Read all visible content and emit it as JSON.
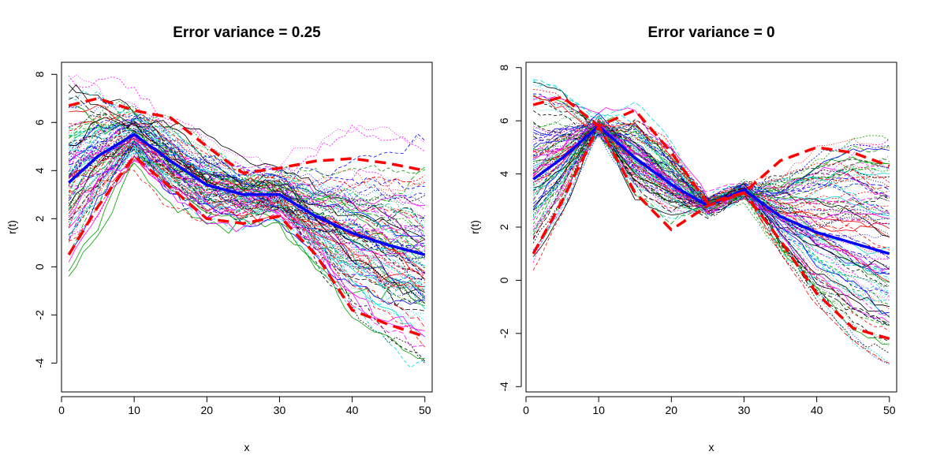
{
  "chart_data": [
    {
      "type": "line",
      "title": "Error variance = 0.25",
      "xlabel": "x",
      "ylabel": "r(t)",
      "xlim": [
        0,
        51
      ],
      "ylim": [
        -5.2,
        8.5
      ],
      "xticks": [
        0,
        10,
        20,
        30,
        40,
        50
      ],
      "yticks": [
        -4,
        -2,
        0,
        2,
        4,
        6,
        8
      ],
      "n_sample_curves": 100,
      "sample_curve_colors": [
        "#000000",
        "#ff0000",
        "#00a000",
        "#0000ff",
        "#00d8d8",
        "#ff00ff"
      ],
      "series": [
        {
          "role": "mean",
          "color": "#0000ff",
          "x": [
            1,
            5,
            10,
            15,
            20,
            25,
            30,
            35,
            40,
            45,
            50
          ],
          "values": [
            3.5,
            4.6,
            5.5,
            4.4,
            3.4,
            3.0,
            3.0,
            2.1,
            1.4,
            0.9,
            0.5
          ]
        },
        {
          "role": "upper-band",
          "color": "#ff0000",
          "x": [
            1,
            5,
            10,
            15,
            20,
            25,
            30,
            35,
            40,
            45,
            50
          ],
          "values": [
            6.7,
            7.0,
            6.5,
            6.2,
            5.0,
            3.9,
            4.1,
            4.4,
            4.5,
            4.3,
            4.0
          ]
        },
        {
          "role": "lower-band",
          "color": "#ff0000",
          "x": [
            1,
            5,
            10,
            15,
            20,
            25,
            30,
            35,
            40,
            45,
            50
          ],
          "values": [
            0.5,
            2.5,
            4.6,
            3.3,
            2.0,
            1.8,
            2.1,
            0.5,
            -1.8,
            -2.4,
            -2.9
          ]
        }
      ]
    },
    {
      "type": "line",
      "title": "Error variance = 0",
      "xlabel": "x",
      "ylabel": "r(t)",
      "xlim": [
        0,
        51
      ],
      "ylim": [
        -4.2,
        8.2
      ],
      "xticks": [
        0,
        10,
        20,
        30,
        40,
        50
      ],
      "yticks": [
        -4,
        -2,
        0,
        2,
        4,
        6,
        8
      ],
      "n_sample_curves": 100,
      "sample_curve_colors": [
        "#000000",
        "#ff0000",
        "#00a000",
        "#0000ff",
        "#00d8d8",
        "#ff00ff"
      ],
      "series": [
        {
          "role": "mean",
          "color": "#0000ff",
          "x": [
            1,
            5,
            10,
            15,
            20,
            25,
            30,
            35,
            40,
            45,
            50
          ],
          "values": [
            3.8,
            4.6,
            5.8,
            4.6,
            3.6,
            2.8,
            3.4,
            2.4,
            1.8,
            1.4,
            1.0
          ]
        },
        {
          "role": "upper-band",
          "color": "#ff0000",
          "x": [
            1,
            5,
            10,
            15,
            20,
            25,
            30,
            35,
            40,
            45,
            50
          ],
          "values": [
            6.6,
            6.9,
            5.8,
            6.4,
            4.8,
            2.9,
            3.3,
            4.5,
            5.0,
            4.8,
            4.3
          ]
        },
        {
          "role": "lower-band",
          "color": "#ff0000",
          "x": [
            1,
            5,
            10,
            15,
            20,
            25,
            30,
            35,
            40,
            45,
            50
          ],
          "values": [
            1.0,
            3.0,
            5.8,
            3.3,
            1.9,
            2.8,
            3.3,
            1.5,
            -0.5,
            -1.8,
            -2.2
          ]
        }
      ]
    }
  ]
}
